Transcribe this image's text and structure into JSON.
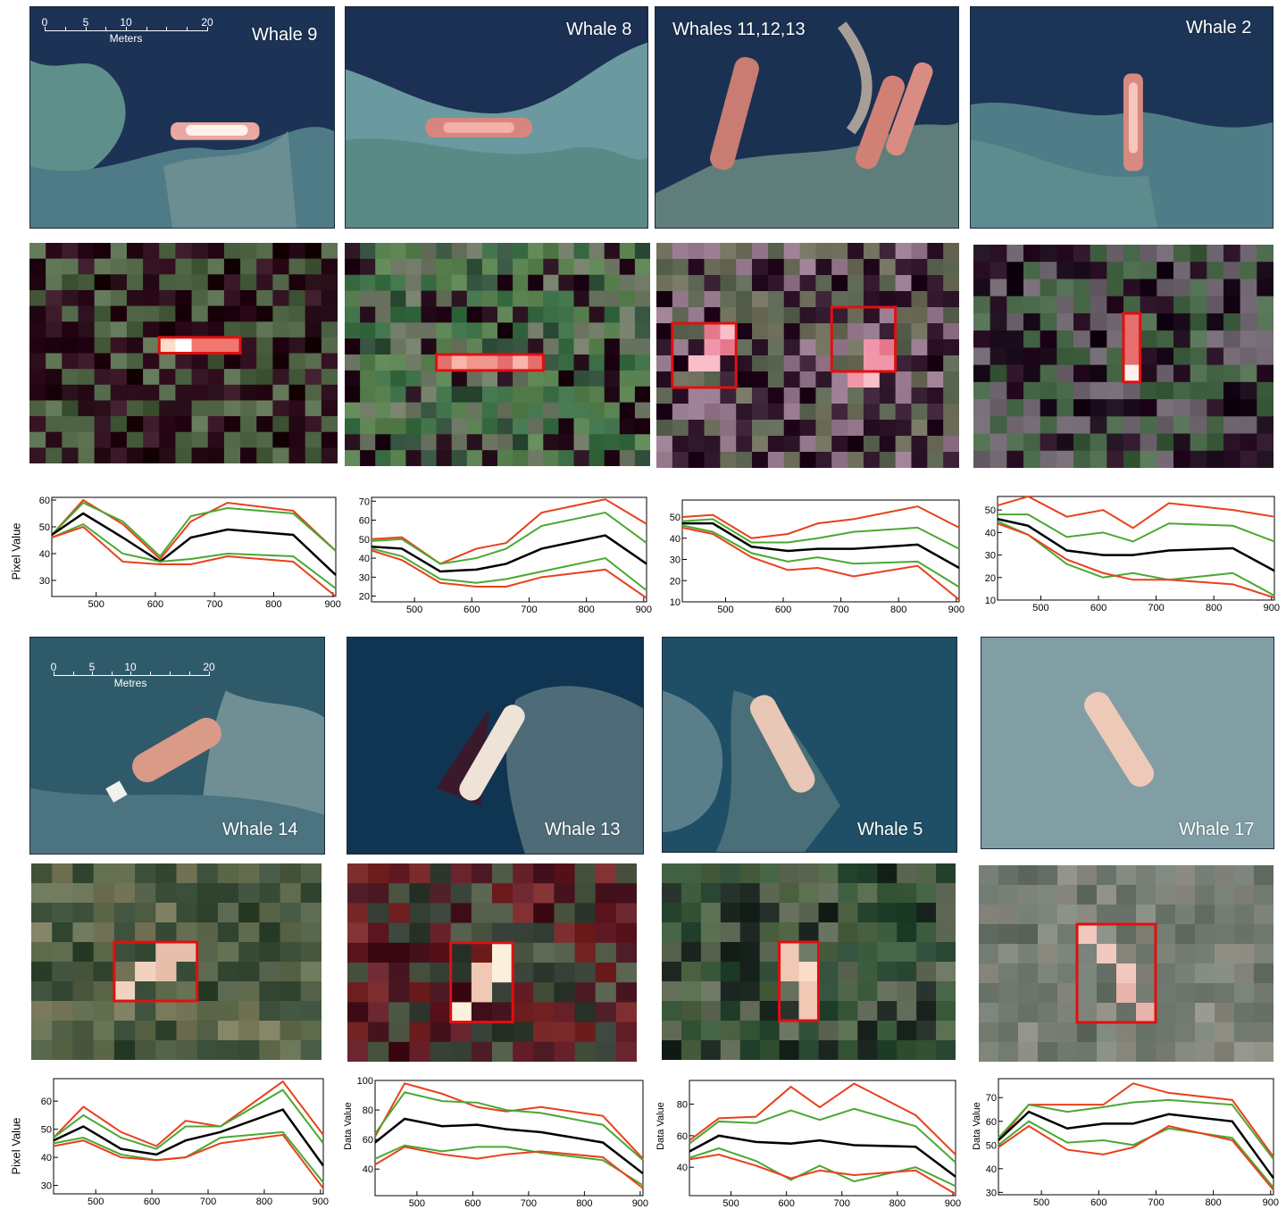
{
  "panels": [
    {
      "id": "p1",
      "label": "Whale 9"
    },
    {
      "id": "p2",
      "label": "Whale 8"
    },
    {
      "id": "p3",
      "label": "Whales 11,12,13"
    },
    {
      "id": "p4",
      "label": "Whale 2"
    },
    {
      "id": "p5",
      "label": "Whale 14"
    },
    {
      "id": "p6",
      "label": "Whale 13"
    },
    {
      "id": "p7",
      "label": "Whale 5"
    },
    {
      "id": "p8",
      "label": "Whale 17"
    }
  ],
  "scalebars": [
    {
      "ticks": [
        "0",
        "5",
        "10",
        "20"
      ],
      "unit": "Meters"
    },
    {
      "ticks": [
        "0",
        "5",
        "10",
        "20"
      ],
      "unit": "Metres"
    }
  ],
  "colors": {
    "outer_band": "#e8401c",
    "inner_band": "#4aa832",
    "mean": "#000000",
    "outline": "#e01010"
  },
  "chart_data": [
    {
      "type": "line",
      "ylabel": "Pixel Value",
      "ylim": [
        24,
        61
      ],
      "xlim": [
        425,
        905
      ],
      "xticks": [
        500,
        600,
        700,
        800,
        900
      ],
      "yticks": [
        30,
        40,
        50,
        60
      ],
      "x": [
        425,
        478,
        545,
        608,
        660,
        722,
        833,
        905
      ],
      "series": [
        {
          "role": "outer",
          "values": [
            47,
            60,
            51,
            38,
            52,
            59,
            56,
            41
          ]
        },
        {
          "role": "inner",
          "values": [
            47,
            59,
            52,
            39,
            54,
            57,
            55,
            41
          ]
        },
        {
          "role": "mean",
          "values": [
            47,
            55,
            46,
            37,
            46,
            49,
            47,
            32
          ]
        },
        {
          "role": "inner",
          "values": [
            46,
            51,
            40,
            37,
            38,
            40,
            39,
            27
          ]
        },
        {
          "role": "outer",
          "values": [
            46,
            50,
            37,
            36,
            36,
            39,
            37,
            24
          ]
        }
      ]
    },
    {
      "type": "line",
      "ylabel": "",
      "ylim": [
        17,
        72
      ],
      "xlim": [
        425,
        905
      ],
      "xticks": [
        500,
        600,
        700,
        800,
        900
      ],
      "yticks": [
        20,
        30,
        40,
        50,
        60,
        70
      ],
      "x": [
        425,
        478,
        545,
        608,
        660,
        722,
        833,
        905
      ],
      "series": [
        {
          "role": "outer",
          "values": [
            50,
            51,
            37,
            45,
            48,
            64,
            71,
            58
          ]
        },
        {
          "role": "inner",
          "values": [
            49,
            50,
            37,
            40,
            45,
            57,
            64,
            48
          ]
        },
        {
          "role": "mean",
          "values": [
            46,
            45,
            33,
            34,
            37,
            45,
            52,
            37
          ]
        },
        {
          "role": "inner",
          "values": [
            45,
            41,
            29,
            27,
            29,
            33,
            40,
            23
          ]
        },
        {
          "role": "outer",
          "values": [
            44,
            39,
            27,
            25,
            25,
            30,
            34,
            19
          ]
        }
      ]
    },
    {
      "type": "line",
      "ylabel": "",
      "ylim": [
        10,
        58
      ],
      "xlim": [
        425,
        905
      ],
      "xticks": [
        500,
        600,
        700,
        800,
        900
      ],
      "yticks": [
        10,
        20,
        30,
        40,
        50
      ],
      "x": [
        425,
        478,
        545,
        608,
        660,
        722,
        833,
        905
      ],
      "series": [
        {
          "role": "outer",
          "values": [
            50,
            51,
            40,
            42,
            47,
            49,
            55,
            45
          ]
        },
        {
          "role": "inner",
          "values": [
            48,
            49,
            38,
            38,
            40,
            43,
            45,
            35
          ]
        },
        {
          "role": "mean",
          "values": [
            47,
            47,
            36,
            34,
            35,
            35,
            37,
            26
          ]
        },
        {
          "role": "inner",
          "values": [
            46,
            43,
            33,
            29,
            31,
            28,
            29,
            17
          ]
        },
        {
          "role": "outer",
          "values": [
            45,
            42,
            31,
            25,
            26,
            22,
            27,
            11
          ]
        }
      ]
    },
    {
      "type": "line",
      "ylabel": "",
      "ylim": [
        10,
        56
      ],
      "xlim": [
        425,
        905
      ],
      "xticks": [
        500,
        600,
        700,
        800,
        900
      ],
      "yticks": [
        10,
        20,
        30,
        40,
        50
      ],
      "x": [
        425,
        478,
        545,
        608,
        660,
        722,
        833,
        905
      ],
      "series": [
        {
          "role": "outer",
          "values": [
            52,
            56,
            47,
            50,
            42,
            53,
            50,
            47
          ]
        },
        {
          "role": "inner",
          "values": [
            48,
            48,
            38,
            40,
            36,
            44,
            43,
            36
          ]
        },
        {
          "role": "mean",
          "values": [
            46,
            43,
            32,
            30,
            30,
            32,
            33,
            23
          ]
        },
        {
          "role": "inner",
          "values": [
            45,
            39,
            26,
            20,
            22,
            19,
            22,
            12
          ]
        },
        {
          "role": "outer",
          "values": [
            44,
            39,
            28,
            22,
            19,
            19,
            17,
            11
          ]
        }
      ]
    },
    {
      "type": "line",
      "ylabel": "Pixel Value",
      "ylim": [
        27,
        68
      ],
      "xlim": [
        425,
        905
      ],
      "xticks": [
        500,
        600,
        700,
        800,
        900
      ],
      "yticks": [
        30,
        40,
        50,
        60
      ],
      "x": [
        425,
        478,
        545,
        608,
        660,
        722,
        833,
        905
      ],
      "series": [
        {
          "role": "outer",
          "values": [
            47,
            58,
            49,
            44,
            53,
            51,
            67,
            48
          ]
        },
        {
          "role": "inner",
          "values": [
            47,
            55,
            47,
            43,
            51,
            51,
            64,
            45
          ]
        },
        {
          "role": "mean",
          "values": [
            46,
            51,
            43,
            41,
            46,
            49,
            57,
            37
          ]
        },
        {
          "role": "inner",
          "values": [
            45,
            47,
            41,
            39,
            40,
            47,
            49,
            31
          ]
        },
        {
          "role": "outer",
          "values": [
            44,
            46,
            40,
            39,
            40,
            45,
            48,
            29
          ]
        }
      ]
    },
    {
      "type": "line",
      "ylabel": "Data Value",
      "ylim": [
        22,
        100
      ],
      "xlim": [
        425,
        905
      ],
      "xticks": [
        500,
        600,
        700,
        800,
        900
      ],
      "yticks": [
        40,
        60,
        80,
        100
      ],
      "x": [
        425,
        478,
        545,
        608,
        660,
        722,
        833,
        905
      ],
      "series": [
        {
          "role": "outer",
          "values": [
            62,
            98,
            91,
            82,
            79,
            82,
            76,
            47
          ]
        },
        {
          "role": "inner",
          "values": [
            64,
            92,
            86,
            85,
            80,
            78,
            70,
            46
          ]
        },
        {
          "role": "mean",
          "values": [
            58,
            74,
            69,
            70,
            67,
            65,
            58,
            37
          ]
        },
        {
          "role": "inner",
          "values": [
            47,
            56,
            52,
            55,
            55,
            51,
            46,
            29
          ]
        },
        {
          "role": "outer",
          "values": [
            43,
            55,
            50,
            47,
            50,
            52,
            48,
            27
          ]
        }
      ]
    },
    {
      "type": "line",
      "ylabel": "Data Value",
      "ylim": [
        22,
        95
      ],
      "xlim": [
        425,
        905
      ],
      "xticks": [
        500,
        600,
        700,
        800,
        900
      ],
      "yticks": [
        40,
        60,
        80
      ],
      "x": [
        425,
        478,
        545,
        608,
        660,
        722,
        833,
        905
      ],
      "series": [
        {
          "role": "outer",
          "values": [
            57,
            71,
            72,
            91,
            78,
            93,
            73,
            48
          ]
        },
        {
          "role": "inner",
          "values": [
            55,
            69,
            68,
            76,
            70,
            77,
            66,
            43
          ]
        },
        {
          "role": "mean",
          "values": [
            50,
            60,
            56,
            55,
            57,
            54,
            53,
            34
          ]
        },
        {
          "role": "inner",
          "values": [
            46,
            52,
            44,
            32,
            41,
            31,
            40,
            28
          ]
        },
        {
          "role": "outer",
          "values": [
            45,
            48,
            41,
            33,
            38,
            35,
            38,
            23
          ]
        }
      ]
    },
    {
      "type": "line",
      "ylabel": "Data Value",
      "ylim": [
        29,
        78
      ],
      "xlim": [
        425,
        905
      ],
      "xticks": [
        500,
        600,
        700,
        800,
        900
      ],
      "yticks": [
        30,
        40,
        50,
        60,
        70
      ],
      "x": [
        425,
        478,
        545,
        608,
        660,
        722,
        833,
        905
      ],
      "series": [
        {
          "role": "outer",
          "values": [
            52,
            67,
            67,
            67,
            76,
            72,
            69,
            45
          ]
        },
        {
          "role": "inner",
          "values": [
            53,
            67,
            64,
            66,
            68,
            69,
            67,
            44
          ]
        },
        {
          "role": "mean",
          "values": [
            52,
            64,
            57,
            59,
            59,
            63,
            60,
            36
          ]
        },
        {
          "role": "inner",
          "values": [
            50,
            60,
            51,
            52,
            50,
            57,
            53,
            32
          ]
        },
        {
          "role": "outer",
          "values": [
            49,
            58,
            48,
            46,
            49,
            58,
            52,
            31
          ]
        }
      ]
    }
  ]
}
